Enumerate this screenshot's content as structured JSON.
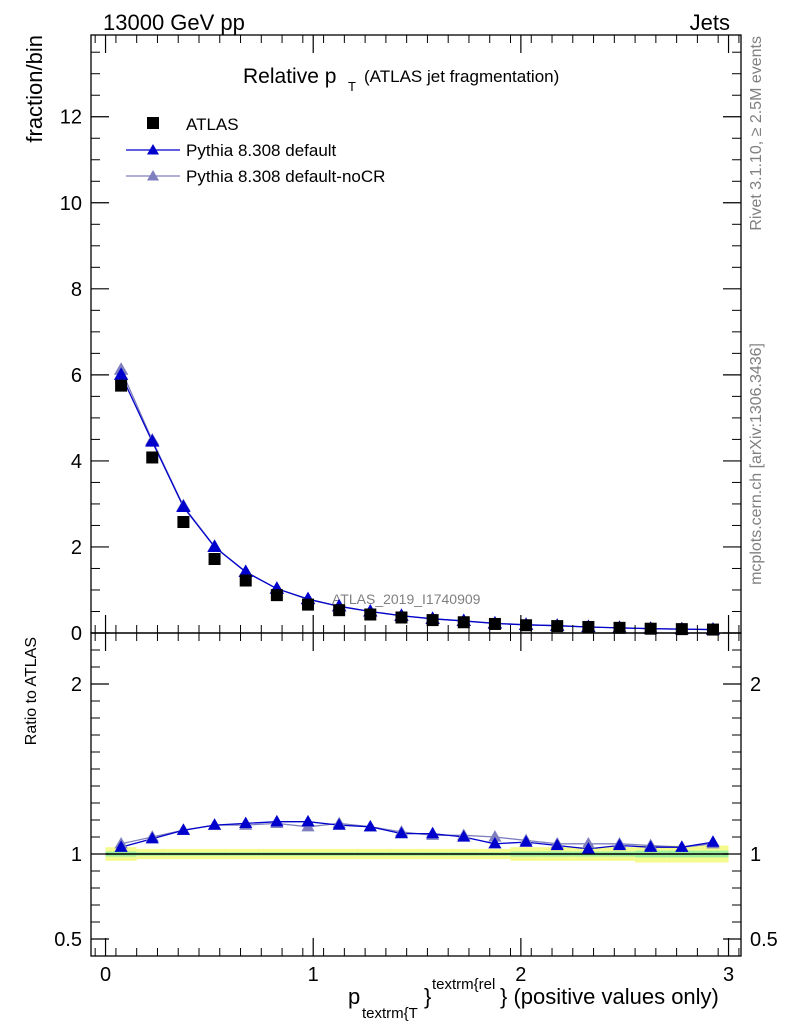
{
  "header": {
    "left": "13000 GeV pp",
    "right": "Jets"
  },
  "side_labels": {
    "rivet": "Rivet 3.1.10, ≥ 2.5M events",
    "mcplots": "mcplots.cern.ch [arXiv:1306.3436]"
  },
  "chart_data": [
    {
      "type": "scatter",
      "title_main": "Relative p",
      "title_sub": "T",
      "title_rest": "(ATLAS jet fragmentation)",
      "watermark": "ATLAS_2019_I1740909",
      "ylabel": "fraction/bin",
      "xlim": [
        -0.07,
        3.06
      ],
      "ylim": [
        0,
        13.9
      ],
      "yticks": [
        0,
        2,
        4,
        6,
        8,
        10,
        12
      ],
      "x": [
        0.075,
        0.225,
        0.375,
        0.525,
        0.675,
        0.825,
        0.975,
        1.125,
        1.275,
        1.425,
        1.575,
        1.725,
        1.875,
        2.025,
        2.175,
        2.325,
        2.475,
        2.625,
        2.775,
        2.925
      ],
      "series": [
        {
          "name": "ATLAS",
          "marker": "square",
          "color": "#000000",
          "values": [
            5.75,
            4.08,
            2.58,
            1.72,
            1.22,
            0.88,
            0.66,
            0.53,
            0.43,
            0.36,
            0.3,
            0.25,
            0.21,
            0.18,
            0.16,
            0.14,
            0.12,
            0.1,
            0.09,
            0.08
          ]
        },
        {
          "name": "Pythia 8.308 default",
          "marker": "triangle",
          "color": "#0000cc",
          "values": [
            6.0,
            4.45,
            2.93,
            2.0,
            1.42,
            1.03,
            0.79,
            0.62,
            0.5,
            0.4,
            0.33,
            0.28,
            0.22,
            0.19,
            0.17,
            0.14,
            0.12,
            0.1,
            0.09,
            0.08
          ]
        },
        {
          "name": "Pythia 8.308 default-noCR",
          "marker": "triangle",
          "color": "#7f7fbf",
          "values": [
            6.12,
            4.48,
            2.95,
            2.01,
            1.42,
            1.03,
            0.78,
            0.62,
            0.5,
            0.4,
            0.33,
            0.28,
            0.23,
            0.19,
            0.17,
            0.14,
            0.12,
            0.1,
            0.09,
            0.08
          ]
        }
      ]
    },
    {
      "type": "scatter",
      "ylabel": "Ratio to ATLAS",
      "xlabel_main": "p",
      "xlabel_sub": "textrm{T",
      "xlabel_sup": "textrm{rel",
      "xlabel_rest": "} (positive values only)",
      "xlim": [
        -0.07,
        3.06
      ],
      "ylim": [
        0.4,
        2.3
      ],
      "yticks": [
        0.5,
        1,
        2
      ],
      "ytick_labels": [
        "0.5",
        "1",
        "2"
      ],
      "xticks": [
        0,
        1,
        2,
        3
      ],
      "xtick_labels": [
        "0",
        "1",
        "2",
        "3"
      ],
      "x": [
        0.075,
        0.225,
        0.375,
        0.525,
        0.675,
        0.825,
        0.975,
        1.125,
        1.275,
        1.425,
        1.575,
        1.725,
        1.875,
        2.025,
        2.175,
        2.325,
        2.475,
        2.625,
        2.775,
        2.925
      ],
      "band": {
        "outer": [
          [
            0.96,
            1.04
          ],
          [
            0.97,
            1.03
          ],
          [
            0.97,
            1.03
          ],
          [
            0.97,
            1.03
          ],
          [
            0.97,
            1.03
          ],
          [
            0.97,
            1.03
          ],
          [
            0.97,
            1.03
          ],
          [
            0.97,
            1.03
          ],
          [
            0.97,
            1.03
          ],
          [
            0.97,
            1.03
          ],
          [
            0.97,
            1.03
          ],
          [
            0.97,
            1.03
          ],
          [
            0.97,
            1.03
          ],
          [
            0.96,
            1.04
          ],
          [
            0.96,
            1.04
          ],
          [
            0.96,
            1.04
          ],
          [
            0.96,
            1.04
          ],
          [
            0.95,
            1.05
          ],
          [
            0.95,
            1.05
          ],
          [
            0.95,
            1.05
          ]
        ],
        "inner": [
          [
            0.985,
            1.015
          ],
          [
            0.99,
            1.01
          ],
          [
            0.99,
            1.01
          ],
          [
            0.99,
            1.01
          ],
          [
            0.99,
            1.01
          ],
          [
            0.99,
            1.01
          ],
          [
            0.99,
            1.01
          ],
          [
            0.99,
            1.01
          ],
          [
            0.99,
            1.01
          ],
          [
            0.99,
            1.01
          ],
          [
            0.99,
            1.01
          ],
          [
            0.99,
            1.01
          ],
          [
            0.99,
            1.01
          ],
          [
            0.985,
            1.015
          ],
          [
            0.985,
            1.015
          ],
          [
            0.985,
            1.015
          ],
          [
            0.985,
            1.015
          ],
          [
            0.98,
            1.02
          ],
          [
            0.98,
            1.02
          ],
          [
            0.98,
            1.02
          ]
        ],
        "outer_color": "#f5fa8c",
        "inner_color": "#9cf09c"
      },
      "series": [
        {
          "name": "Pythia 8.308 default",
          "marker": "triangle",
          "color": "#0000cc",
          "values": [
            1.04,
            1.09,
            1.14,
            1.17,
            1.18,
            1.19,
            1.19,
            1.17,
            1.16,
            1.12,
            1.12,
            1.1,
            1.06,
            1.07,
            1.05,
            1.03,
            1.05,
            1.04,
            1.04,
            1.07
          ]
        },
        {
          "name": "Pythia 8.308 default-noCR",
          "marker": "triangle",
          "color": "#7f7fbf",
          "values": [
            1.06,
            1.1,
            1.14,
            1.17,
            1.17,
            1.18,
            1.16,
            1.18,
            1.16,
            1.13,
            1.11,
            1.11,
            1.1,
            1.08,
            1.06,
            1.06,
            1.06,
            1.05,
            1.04,
            1.06
          ]
        }
      ],
      "reference_line": 1
    }
  ]
}
